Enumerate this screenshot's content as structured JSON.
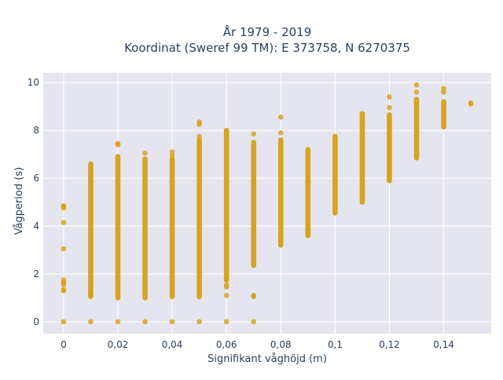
{
  "chart_data": {
    "type": "scatter",
    "title_lines": [
      "År 1979 - 2019",
      "Koordinat (Sweref 99 TM): E 373758, N 6270375"
    ],
    "xlabel": "Signifikant våghöjd (m)",
    "ylabel": "Vågperiod (s)",
    "xlim": [
      -0.0075,
      0.1575
    ],
    "ylim": [
      -0.5,
      10.4
    ],
    "x_ticks": [
      0,
      0.02,
      0.04,
      0.06,
      0.08,
      0.1,
      0.12,
      0.14
    ],
    "x_tick_labels": [
      "0",
      "0,02",
      "0,04",
      "0,06",
      "0,08",
      "0,1",
      "0,12",
      "0,14"
    ],
    "y_ticks": [
      0,
      2,
      4,
      6,
      8,
      10
    ],
    "y_tick_labels": [
      "0",
      "2",
      "4",
      "6",
      "8",
      "10"
    ],
    "grid": true,
    "marker_color": "#d4a017",
    "background_color": "#e5e5ef",
    "grid_color": "#ffffff",
    "columns": [
      {
        "x": 0,
        "ranges": [],
        "points": [
          0,
          1.3,
          1.35,
          1.55,
          1.65,
          1.75,
          3.05,
          4.15,
          4.75,
          4.8,
          4.85
        ]
      },
      {
        "x": 0.01,
        "ranges": [
          [
            1.1,
            6.6
          ]
        ],
        "points": [
          0,
          1.05,
          1.15
        ]
      },
      {
        "x": 0.02,
        "ranges": [
          [
            1.0,
            6.9
          ]
        ],
        "points": [
          0,
          7.4,
          7.45
        ]
      },
      {
        "x": 0.03,
        "ranges": [
          [
            1.0,
            6.8
          ]
        ],
        "points": [
          0,
          7.05
        ]
      },
      {
        "x": 0.04,
        "ranges": [
          [
            1.05,
            6.8
          ]
        ],
        "points": [
          0,
          6.95,
          7.1
        ]
      },
      {
        "x": 0.05,
        "ranges": [
          [
            1.05,
            7.6
          ]
        ],
        "points": [
          0,
          7.75,
          8.25,
          8.35
        ]
      },
      {
        "x": 0.06,
        "ranges": [
          [
            1.75,
            8.0
          ]
        ],
        "points": [
          0,
          1.1,
          1.45,
          1.55,
          1.75
        ]
      },
      {
        "x": 0.07,
        "ranges": [
          [
            2.35,
            7.5
          ]
        ],
        "points": [
          0,
          1.05,
          1.1,
          7.85
        ]
      },
      {
        "x": 0.08,
        "ranges": [
          [
            3.2,
            7.6
          ]
        ],
        "points": [
          7.9,
          8.55
        ]
      },
      {
        "x": 0.09,
        "ranges": [
          [
            3.6,
            7.2
          ]
        ],
        "points": []
      },
      {
        "x": 0.1,
        "ranges": [
          [
            4.55,
            7.75
          ]
        ],
        "points": []
      },
      {
        "x": 0.11,
        "ranges": [
          [
            5.0,
            8.7
          ]
        ],
        "points": []
      },
      {
        "x": 0.12,
        "ranges": [
          [
            5.9,
            8.65
          ]
        ],
        "points": [
          8.95,
          9.4
        ]
      },
      {
        "x": 0.13,
        "ranges": [
          [
            6.85,
            9.3
          ]
        ],
        "points": [
          9.6,
          9.9
        ]
      },
      {
        "x": 0.14,
        "ranges": [
          [
            8.15,
            9.2
          ]
        ],
        "points": [
          9.6,
          9.75
        ]
      },
      {
        "x": 0.15,
        "ranges": [],
        "points": [
          9.1,
          9.15
        ]
      }
    ]
  }
}
